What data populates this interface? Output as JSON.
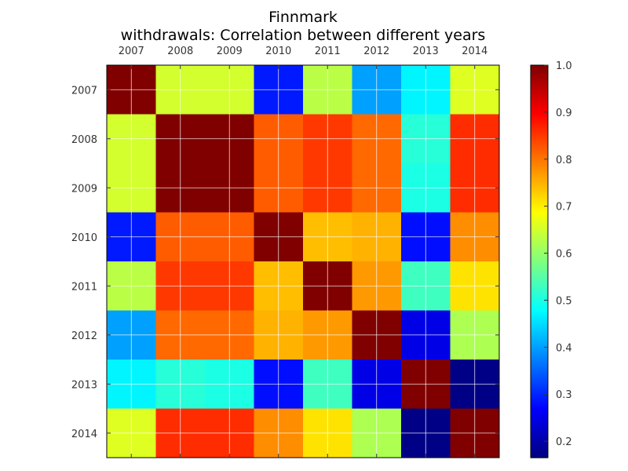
{
  "chart_data": {
    "type": "heatmap",
    "title": "Finnmark",
    "subtitle": "withdrawals: Correlation between different years",
    "x_categories": [
      "2007",
      "2008",
      "2009",
      "2010",
      "2011",
      "2012",
      "2013",
      "2014"
    ],
    "y_categories": [
      "2007",
      "2008",
      "2009",
      "2010",
      "2011",
      "2012",
      "2013",
      "2014"
    ],
    "values": [
      [
        1.0,
        0.65,
        0.65,
        0.29,
        0.63,
        0.4,
        0.47,
        0.66
      ],
      [
        0.65,
        1.0,
        1.0,
        0.82,
        0.85,
        0.81,
        0.51,
        0.86
      ],
      [
        0.65,
        1.0,
        1.0,
        0.82,
        0.85,
        0.81,
        0.5,
        0.86
      ],
      [
        0.29,
        0.82,
        0.82,
        1.0,
        0.74,
        0.75,
        0.28,
        0.78
      ],
      [
        0.63,
        0.85,
        0.85,
        0.74,
        1.0,
        0.77,
        0.53,
        0.71
      ],
      [
        0.4,
        0.81,
        0.81,
        0.75,
        0.77,
        1.0,
        0.25,
        0.62
      ],
      [
        0.47,
        0.51,
        0.5,
        0.28,
        0.53,
        0.25,
        1.0,
        0.17
      ],
      [
        0.66,
        0.86,
        0.86,
        0.78,
        0.71,
        0.62,
        0.17,
        1.0
      ]
    ],
    "colorscale": "jet",
    "vmin": 0.165,
    "vmax": 1.0,
    "colorbar_ticks": [
      "1.0",
      "0.9",
      "0.8",
      "0.7",
      "0.6",
      "0.5",
      "0.4",
      "0.3",
      "0.2"
    ],
    "grid": true,
    "x_axis_position": "top"
  }
}
